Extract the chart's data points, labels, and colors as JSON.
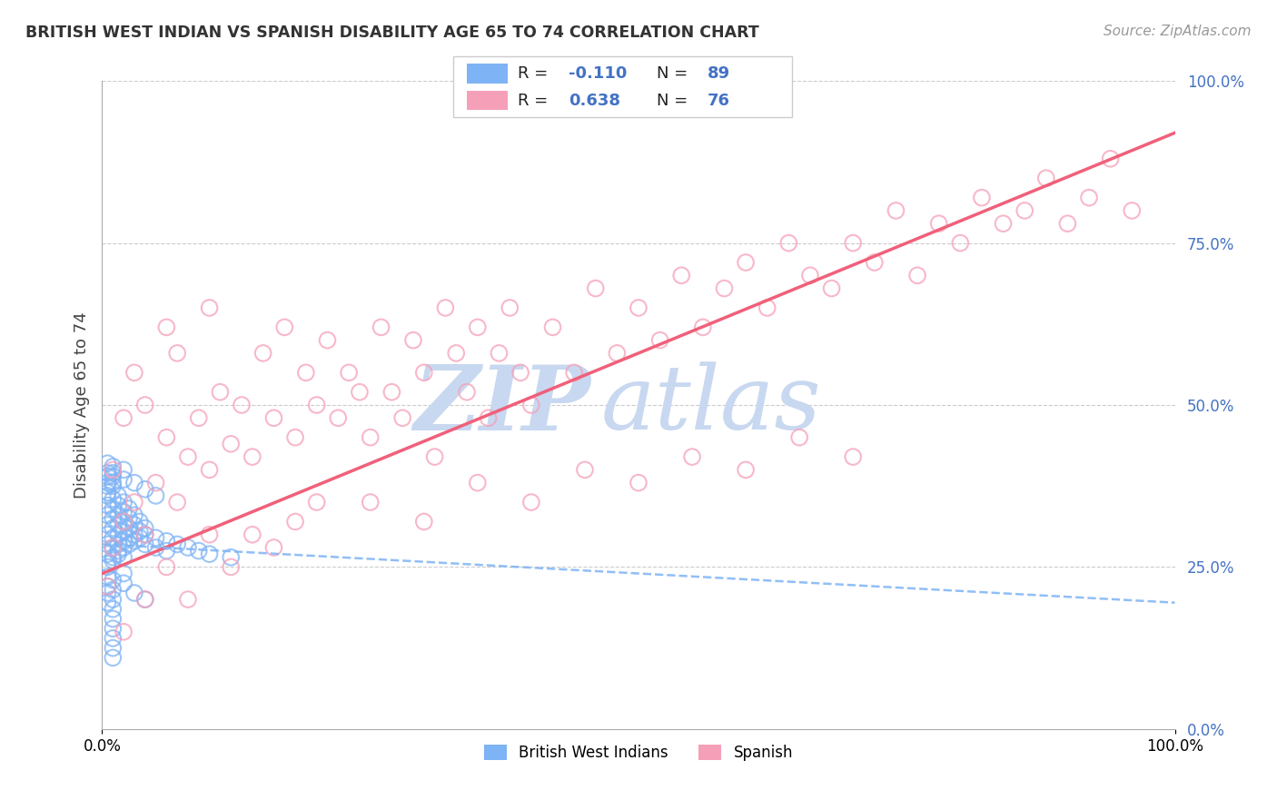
{
  "title": "BRITISH WEST INDIAN VS SPANISH DISABILITY AGE 65 TO 74 CORRELATION CHART",
  "source": "Source: ZipAtlas.com",
  "ylabel": "Disability Age 65 to 74",
  "xlim": [
    0.0,
    1.0
  ],
  "ylim": [
    0.0,
    1.0
  ],
  "ytick_positions": [
    0.0,
    0.25,
    0.5,
    0.75,
    1.0
  ],
  "ytick_labels": [
    "0.0%",
    "25.0%",
    "50.0%",
    "75.0%",
    "100.0%"
  ],
  "xtick_labels": [
    "0.0%",
    "100.0%"
  ],
  "legend1_label": "British West Indians",
  "legend2_label": "Spanish",
  "r1": "-0.110",
  "n1": "89",
  "r2": "0.638",
  "n2": "76",
  "blue_color": "#7EB3F5",
  "pink_color": "#F5A0B8",
  "trend_blue_color": "#7EB3F5",
  "trend_pink_color": "#F0607A",
  "text_blue": "#4472C4",
  "watermark_color": "#C8D8F0",
  "background_color": "#ffffff",
  "grid_color": "#cccccc",
  "blue_scatter_x": [
    0.005,
    0.005,
    0.005,
    0.005,
    0.005,
    0.005,
    0.005,
    0.005,
    0.005,
    0.005,
    0.01,
    0.01,
    0.01,
    0.01,
    0.01,
    0.01,
    0.01,
    0.01,
    0.01,
    0.01,
    0.015,
    0.015,
    0.015,
    0.015,
    0.015,
    0.015,
    0.015,
    0.015,
    0.02,
    0.02,
    0.02,
    0.02,
    0.02,
    0.02,
    0.02,
    0.025,
    0.025,
    0.025,
    0.025,
    0.025,
    0.03,
    0.03,
    0.03,
    0.03,
    0.035,
    0.035,
    0.035,
    0.04,
    0.04,
    0.04,
    0.05,
    0.05,
    0.06,
    0.06,
    0.07,
    0.08,
    0.09,
    0.1,
    0.12,
    0.005,
    0.005,
    0.005,
    0.005,
    0.01,
    0.01,
    0.01,
    0.02,
    0.02,
    0.03,
    0.04,
    0.05,
    0.005,
    0.005,
    0.005,
    0.005,
    0.005,
    0.01,
    0.01,
    0.01,
    0.01,
    0.02,
    0.02,
    0.03,
    0.04,
    0.01,
    0.01,
    0.01,
    0.01,
    0.01
  ],
  "blue_scatter_y": [
    0.285,
    0.3,
    0.315,
    0.33,
    0.345,
    0.36,
    0.27,
    0.255,
    0.375,
    0.39,
    0.28,
    0.295,
    0.31,
    0.325,
    0.34,
    0.355,
    0.265,
    0.38,
    0.395,
    0.26,
    0.285,
    0.3,
    0.315,
    0.33,
    0.275,
    0.345,
    0.36,
    0.27,
    0.29,
    0.305,
    0.32,
    0.335,
    0.28,
    0.35,
    0.265,
    0.295,
    0.31,
    0.325,
    0.285,
    0.34,
    0.3,
    0.315,
    0.29,
    0.33,
    0.305,
    0.295,
    0.32,
    0.31,
    0.3,
    0.285,
    0.295,
    0.28,
    0.29,
    0.275,
    0.285,
    0.28,
    0.275,
    0.27,
    0.265,
    0.395,
    0.41,
    0.38,
    0.365,
    0.39,
    0.375,
    0.405,
    0.385,
    0.4,
    0.38,
    0.37,
    0.36,
    0.22,
    0.235,
    0.21,
    0.195,
    0.25,
    0.215,
    0.2,
    0.23,
    0.185,
    0.225,
    0.24,
    0.21,
    0.2,
    0.17,
    0.155,
    0.14,
    0.125,
    0.11
  ],
  "pink_scatter_x": [
    0.005,
    0.01,
    0.01,
    0.02,
    0.02,
    0.03,
    0.03,
    0.04,
    0.04,
    0.05,
    0.06,
    0.06,
    0.07,
    0.07,
    0.08,
    0.09,
    0.1,
    0.1,
    0.11,
    0.12,
    0.13,
    0.14,
    0.15,
    0.16,
    0.17,
    0.18,
    0.19,
    0.2,
    0.21,
    0.22,
    0.23,
    0.24,
    0.25,
    0.26,
    0.27,
    0.28,
    0.29,
    0.3,
    0.31,
    0.32,
    0.33,
    0.34,
    0.35,
    0.36,
    0.37,
    0.38,
    0.39,
    0.4,
    0.42,
    0.44,
    0.46,
    0.48,
    0.5,
    0.52,
    0.54,
    0.56,
    0.58,
    0.6,
    0.62,
    0.64,
    0.66,
    0.68,
    0.7,
    0.72,
    0.74,
    0.76,
    0.78,
    0.8,
    0.82,
    0.84,
    0.86,
    0.88,
    0.9,
    0.92,
    0.94,
    0.96
  ],
  "pink_scatter_y": [
    0.22,
    0.28,
    0.4,
    0.32,
    0.48,
    0.35,
    0.55,
    0.3,
    0.5,
    0.38,
    0.45,
    0.62,
    0.35,
    0.58,
    0.42,
    0.48,
    0.4,
    0.65,
    0.52,
    0.44,
    0.5,
    0.42,
    0.58,
    0.48,
    0.62,
    0.45,
    0.55,
    0.5,
    0.6,
    0.48,
    0.55,
    0.52,
    0.45,
    0.62,
    0.52,
    0.48,
    0.6,
    0.55,
    0.42,
    0.65,
    0.58,
    0.52,
    0.62,
    0.48,
    0.58,
    0.65,
    0.55,
    0.5,
    0.62,
    0.55,
    0.68,
    0.58,
    0.65,
    0.6,
    0.7,
    0.62,
    0.68,
    0.72,
    0.65,
    0.75,
    0.7,
    0.68,
    0.75,
    0.72,
    0.8,
    0.7,
    0.78,
    0.75,
    0.82,
    0.78,
    0.8,
    0.85,
    0.78,
    0.82,
    0.88,
    0.8
  ],
  "pink_extra_x": [
    0.02,
    0.04,
    0.06,
    0.08,
    0.1,
    0.12,
    0.14,
    0.16,
    0.18,
    0.2,
    0.25,
    0.3,
    0.35,
    0.4,
    0.45,
    0.5,
    0.55,
    0.6,
    0.65,
    0.7
  ],
  "pink_extra_y": [
    0.15,
    0.2,
    0.25,
    0.2,
    0.3,
    0.25,
    0.3,
    0.28,
    0.32,
    0.35,
    0.35,
    0.32,
    0.38,
    0.35,
    0.4,
    0.38,
    0.42,
    0.4,
    0.45,
    0.42
  ]
}
